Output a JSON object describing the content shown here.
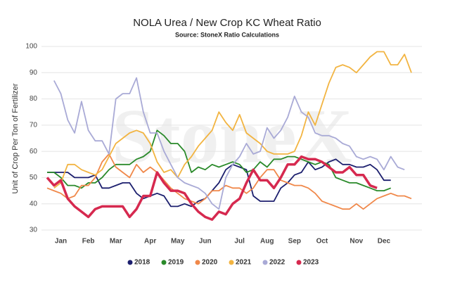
{
  "chart_data": {
    "type": "line",
    "title": "NOLA Urea / New Crop KC Wheat Ratio",
    "subtitle": "Source: StoneX Ratio Calculations",
    "watermark": "StoneX",
    "y_label": "Unit of Crop Per Ton of Fertilizer",
    "categories": [
      null,
      null,
      "Jan",
      null,
      null,
      null,
      "Feb",
      null,
      null,
      null,
      "Mar",
      null,
      null,
      null,
      null,
      "Apr",
      null,
      null,
      null,
      "May",
      null,
      null,
      null,
      "Jun",
      null,
      null,
      null,
      null,
      "Jul",
      null,
      null,
      null,
      "Aug",
      null,
      null,
      null,
      "Sep",
      null,
      null,
      null,
      "Oct",
      null,
      null,
      null,
      null,
      "Nov",
      null,
      null,
      null,
      "Dec",
      null,
      null,
      null,
      null
    ],
    "ylim": [
      30,
      100
    ],
    "yticks": [
      30,
      40,
      50,
      60,
      70,
      80,
      90,
      100
    ],
    "grid": true,
    "series": [
      {
        "name": "2018",
        "color": "#1c1f6e",
        "values": [
          52,
          52,
          52,
          52,
          50,
          50,
          50,
          51,
          46,
          46,
          47,
          48,
          48,
          44,
          42,
          43,
          44,
          43,
          39,
          39,
          40,
          39,
          41,
          42,
          45,
          48,
          53,
          55,
          54,
          53,
          43,
          41,
          41,
          41,
          46,
          48,
          51,
          52,
          56,
          53,
          54,
          56,
          57,
          55,
          55,
          54,
          54,
          55,
          53,
          49,
          49,
          null,
          null,
          null
        ]
      },
      {
        "name": "2019",
        "color": "#2a8a2a",
        "values": [
          52,
          52,
          50,
          47,
          47,
          46,
          48,
          48,
          50,
          53,
          55,
          55,
          55,
          57,
          58,
          60,
          68,
          66,
          63,
          63,
          60,
          52,
          54,
          53,
          55,
          54,
          55,
          56,
          55,
          52,
          53,
          56,
          54,
          57,
          57,
          58,
          58,
          57,
          56,
          55,
          56,
          55,
          50,
          49,
          48,
          48,
          47,
          46,
          45,
          45,
          46,
          null,
          null,
          null
        ]
      },
      {
        "name": "2020",
        "color": "#f0884a",
        "values": [
          46,
          45,
          44,
          42,
          43,
          47,
          47,
          50,
          56,
          59,
          54,
          52,
          50,
          55,
          52,
          54,
          52,
          49,
          46,
          44,
          42,
          41,
          40,
          42,
          45,
          45,
          47,
          46,
          46,
          44,
          46,
          50,
          53,
          53,
          49,
          48,
          47,
          47,
          46,
          44,
          41,
          40,
          39,
          38,
          38,
          40,
          38,
          40,
          42,
          43,
          44,
          43,
          43,
          42
        ]
      },
      {
        "name": "2021",
        "color": "#f2b441",
        "values": [
          null,
          46,
          48,
          55,
          55,
          53,
          52,
          51,
          53,
          58,
          63,
          65,
          67,
          68,
          67,
          63,
          56,
          52,
          53,
          50,
          55,
          58,
          62,
          65,
          68,
          75,
          71,
          68,
          74,
          67,
          65,
          63,
          60,
          59,
          59,
          59,
          60,
          66,
          75,
          70,
          78,
          86,
          92,
          93,
          92,
          90,
          93,
          96,
          98,
          98,
          93,
          93,
          97,
          90
        ]
      },
      {
        "name": "2022",
        "color": "#a9aad6",
        "values": [
          null,
          87,
          82,
          72,
          67,
          79,
          68,
          64,
          64,
          59,
          80,
          82,
          82,
          88,
          75,
          67,
          67,
          60,
          55,
          50,
          48,
          47,
          46,
          44,
          40,
          38,
          50,
          55,
          58,
          63,
          59,
          60,
          69,
          65,
          68,
          73,
          81,
          75,
          73,
          67,
          66,
          66,
          65,
          63,
          62,
          58,
          57,
          58,
          57,
          53,
          58,
          54,
          53,
          null
        ]
      },
      {
        "name": "2023",
        "color": "#d6294f",
        "values": [
          50,
          47,
          49,
          42,
          39,
          37,
          35,
          38,
          39,
          39,
          39,
          39,
          35,
          38,
          43,
          43,
          52,
          48,
          45,
          45,
          44,
          40,
          37,
          35,
          34,
          37,
          36,
          40,
          42,
          48,
          53,
          49,
          49,
          46,
          50,
          55,
          55,
          58,
          57,
          57,
          56,
          54,
          52,
          52,
          54,
          51,
          51,
          47,
          46,
          null,
          null,
          null,
          null,
          null
        ]
      }
    ]
  }
}
